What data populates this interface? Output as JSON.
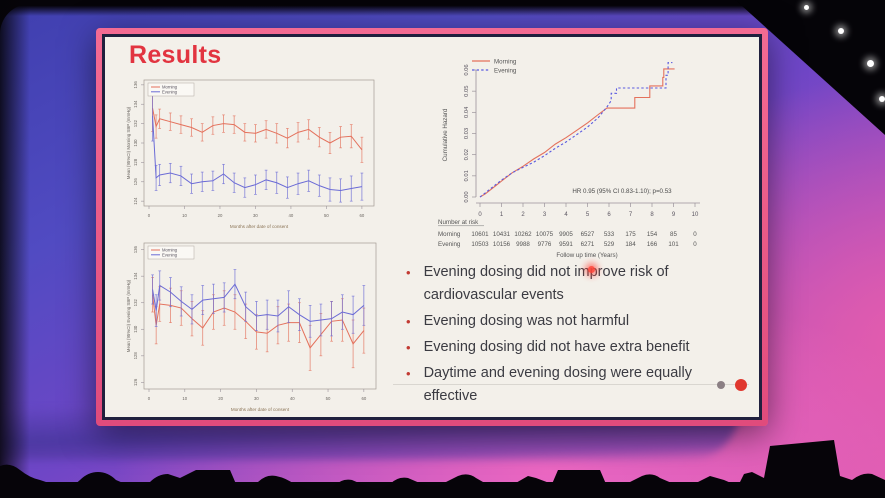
{
  "slide": {
    "title": "Results",
    "bullets": [
      "Evening dosing did not improve risk of cardiovascular events",
      "Evening dosing was not harmful",
      "Evening dosing did not have extra benefit",
      "Daytime and evening dosing were equally effective"
    ]
  },
  "colors": {
    "title": "#e23440",
    "morning_series": "#e4715c",
    "evening_series": "#6b6bd6",
    "slide_frame_pink": "#ee5c86",
    "bullet_marker": "#c23b33",
    "nav_dot_gray": "#8b7f84",
    "nav_dot_red": "#e0372e"
  },
  "chart_data": [
    {
      "id": "morning-sbp",
      "type": "line",
      "title": "",
      "ylabel": "Mean (95%CI) Morning SBP (mmHg)",
      "xlabel": "Months after date of consent",
      "xlim": [
        0,
        62
      ],
      "ylim": [
        123.5,
        136.5
      ],
      "xticks": [
        0,
        10,
        20,
        30,
        40,
        50,
        60
      ],
      "yticks": [
        124,
        126,
        128,
        130,
        132,
        134,
        136
      ],
      "legend_position": "top-left",
      "x": [
        1,
        2,
        3,
        6,
        9,
        12,
        15,
        18,
        21,
        24,
        27,
        30,
        33,
        36,
        39,
        42,
        45,
        48,
        51,
        54,
        57,
        60
      ],
      "series": [
        {
          "name": "Morning",
          "color": "#e4715c",
          "values": [
            133.6,
            131.7,
            132.5,
            132.2,
            131.9,
            131.6,
            131.1,
            131.8,
            132.0,
            131.9,
            131.1,
            131.0,
            131.4,
            131.0,
            130.5,
            131.1,
            131.4,
            130.6,
            130.0,
            130.6,
            130.7,
            129.3
          ],
          "err": [
            2.4,
            1.2,
            1.0,
            0.9,
            0.9,
            0.9,
            0.9,
            0.9,
            0.9,
            0.9,
            0.9,
            0.9,
            0.9,
            1.0,
            1.0,
            1.0,
            1.0,
            1.0,
            1.1,
            1.1,
            1.2,
            1.3
          ]
        },
        {
          "name": "Evening",
          "color": "#6b6bd6",
          "values": [
            132.8,
            126.4,
            126.7,
            126.9,
            126.6,
            125.8,
            126.0,
            126.1,
            126.8,
            125.9,
            125.4,
            125.7,
            126.2,
            125.9,
            125.4,
            125.8,
            126.1,
            125.6,
            125.2,
            125.1,
            125.3,
            125.5
          ],
          "err": [
            2.6,
            1.3,
            1.1,
            1.0,
            1.0,
            1.0,
            1.0,
            1.0,
            1.0,
            1.0,
            1.0,
            1.0,
            1.0,
            1.1,
            1.1,
            1.1,
            1.1,
            1.1,
            1.2,
            1.2,
            1.3,
            1.4
          ]
        }
      ]
    },
    {
      "id": "evening-sbp",
      "type": "line",
      "title": "",
      "ylabel": "Mean (95%CI) Evening SBP (mmHg)",
      "xlabel": "Months after date of consent",
      "xlim": [
        0,
        62
      ],
      "ylim": [
        125.5,
        136.5
      ],
      "xticks": [
        0,
        10,
        20,
        30,
        40,
        50,
        60
      ],
      "yticks": [
        126,
        128,
        130,
        132,
        134,
        136
      ],
      "legend_position": "top-left",
      "x": [
        1,
        2,
        3,
        6,
        9,
        12,
        15,
        18,
        21,
        24,
        27,
        30,
        33,
        36,
        39,
        42,
        45,
        48,
        51,
        54,
        57,
        60
      ],
      "series": [
        {
          "name": "Morning",
          "color": "#e4715c",
          "values": [
            132.6,
            130.3,
            131.9,
            131.8,
            131.6,
            130.8,
            130.1,
            131.3,
            131.6,
            131.3,
            130.6,
            129.8,
            129.7,
            130.3,
            130.5,
            130.5,
            128.6,
            129.6,
            130.6,
            130.7,
            128.9,
            129.9
          ],
          "err": [
            1.3,
            1.4,
            1.3,
            1.3,
            1.3,
            1.3,
            1.3,
            1.3,
            1.3,
            1.3,
            1.3,
            1.3,
            1.4,
            1.4,
            1.4,
            1.5,
            1.7,
            1.6,
            1.5,
            1.6,
            1.8,
            1.7
          ]
        },
        {
          "name": "Evening",
          "color": "#6b6bd6",
          "values": [
            133.0,
            131.4,
            133.3,
            132.8,
            132.1,
            131.5,
            132.2,
            132.3,
            132.4,
            133.4,
            131.7,
            131.0,
            131.1,
            131.0,
            131.7,
            131.1,
            130.6,
            130.7,
            130.8,
            131.3,
            131.1,
            131.8
          ],
          "err": [
            1.1,
            1.2,
            1.1,
            1.1,
            1.1,
            1.1,
            1.1,
            1.1,
            1.1,
            1.1,
            1.1,
            1.1,
            1.1,
            1.2,
            1.2,
            1.2,
            1.2,
            1.2,
            1.3,
            1.3,
            1.4,
            1.5
          ]
        }
      ]
    },
    {
      "id": "cumulative-hazard",
      "type": "step",
      "title": "",
      "ylabel": "Cumulative Hazard",
      "xlabel": "Follow up time (Years)",
      "xlim": [
        0,
        10
      ],
      "ylim": [
        0,
        0.065
      ],
      "xticks": [
        0,
        1,
        2,
        3,
        4,
        5,
        6,
        7,
        8,
        9,
        10
      ],
      "yticks": [
        0,
        0.01,
        0.02,
        0.03,
        0.04,
        0.05,
        0.06
      ],
      "annotation": "HR 0.95 (95% CI 0.83-1.10); p=0.53",
      "legend": [
        "Morning",
        "Evening"
      ],
      "series": [
        {
          "name": "Morning",
          "color": "#e4715c",
          "dashed": false,
          "points": [
            [
              0,
              0
            ],
            [
              0.25,
              0.0015
            ],
            [
              0.5,
              0.0035
            ],
            [
              0.75,
              0.0055
            ],
            [
              1,
              0.0075
            ],
            [
              1.5,
              0.0115
            ],
            [
              2,
              0.0145
            ],
            [
              2.5,
              0.018
            ],
            [
              3,
              0.021
            ],
            [
              3.5,
              0.025
            ],
            [
              4,
              0.028
            ],
            [
              4.5,
              0.0315
            ],
            [
              5,
              0.035
            ],
            [
              5.5,
              0.039
            ],
            [
              5.9,
              0.042
            ],
            [
              7.2,
              0.042
            ],
            [
              7.2,
              0.047
            ],
            [
              7.9,
              0.047
            ],
            [
              7.9,
              0.0525
            ],
            [
              8.5,
              0.0525
            ],
            [
              8.5,
              0.0565
            ],
            [
              8.55,
              0.0565
            ],
            [
              8.55,
              0.0605
            ],
            [
              9.05,
              0.0605
            ]
          ]
        },
        {
          "name": "Evening",
          "color": "#5a5ae0",
          "dashed": true,
          "points": [
            [
              0,
              0
            ],
            [
              0.25,
              0.002
            ],
            [
              0.5,
              0.004
            ],
            [
              0.75,
              0.006
            ],
            [
              1,
              0.008
            ],
            [
              1.5,
              0.0115
            ],
            [
              2,
              0.014
            ],
            [
              2.5,
              0.0165
            ],
            [
              3,
              0.0195
            ],
            [
              3.5,
              0.023
            ],
            [
              4,
              0.026
            ],
            [
              4.5,
              0.0295
            ],
            [
              5,
              0.033
            ],
            [
              5.5,
              0.0375
            ],
            [
              5.9,
              0.0425
            ],
            [
              6.1,
              0.0455
            ],
            [
              6.1,
              0.049
            ],
            [
              6.35,
              0.049
            ],
            [
              6.35,
              0.0515
            ],
            [
              8.65,
              0.0515
            ],
            [
              8.65,
              0.0575
            ],
            [
              8.75,
              0.0575
            ],
            [
              8.75,
              0.0635
            ],
            [
              8.95,
              0.0635
            ]
          ]
        }
      ],
      "number_at_risk": {
        "label": "Number at risk",
        "times": [
          0,
          1,
          2,
          3,
          4,
          5,
          6,
          7,
          8,
          9,
          10
        ],
        "rows": [
          {
            "name": "Morning",
            "values": [
              10601,
              10431,
              10262,
              10075,
              9905,
              6527,
              533,
              175,
              154,
              85,
              0
            ]
          },
          {
            "name": "Evening",
            "values": [
              10503,
              10156,
              9988,
              9776,
              9591,
              6271,
              529,
              184,
              166,
              101,
              0
            ]
          }
        ]
      }
    }
  ]
}
